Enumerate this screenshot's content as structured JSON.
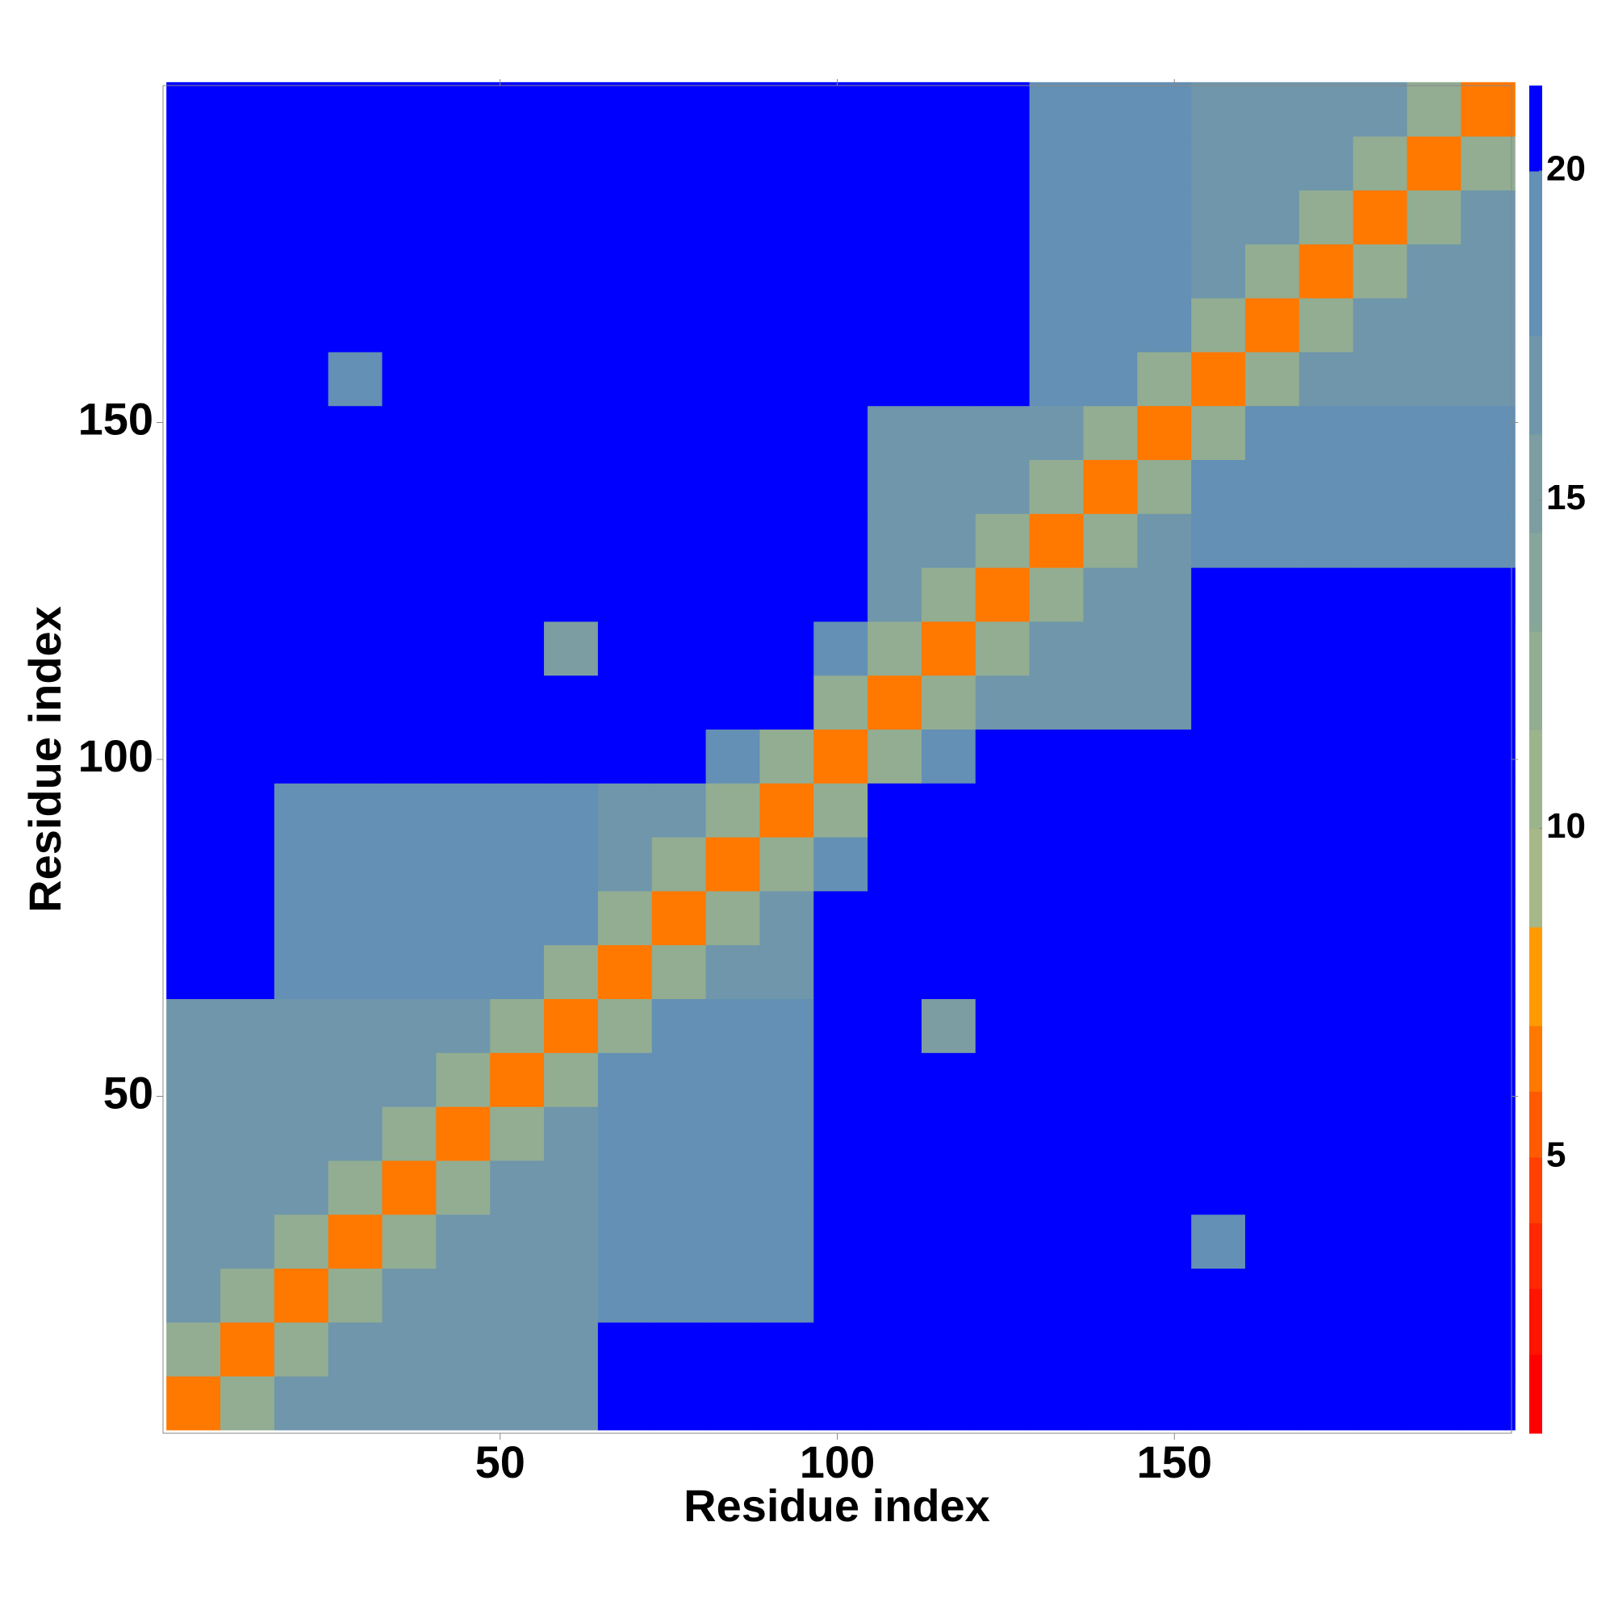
{
  "chart_data": {
    "type": "heatmap",
    "x_label": "Residue index",
    "y_label": "Residue index",
    "x": [
      4.5,
      12.5,
      20.5,
      28.5,
      36.5,
      44.5,
      52.5,
      60.5,
      68.5,
      76.5,
      84.5,
      92.5,
      100.5,
      108.5,
      116.5,
      124.5,
      132.5,
      140.5,
      148.5,
      156.5,
      164.5,
      172.5,
      180.5,
      188.5,
      196.5
    ],
    "y": [
      4.5,
      12.5,
      20.5,
      28.5,
      36.5,
      44.5,
      52.5,
      60.5,
      68.5,
      76.5,
      84.5,
      92.5,
      100.5,
      108.5,
      116.5,
      124.5,
      132.5,
      140.5,
      148.5,
      156.5,
      164.5,
      172.5,
      180.5,
      188.5,
      196.5
    ],
    "z": [
      [
        6,
        12,
        16,
        16,
        16,
        16,
        16,
        16,
        20,
        20,
        20,
        20,
        21,
        21,
        21,
        21,
        21,
        21,
        21,
        21,
        21,
        21,
        21,
        21,
        21
      ],
      [
        12,
        6,
        12,
        16,
        16,
        16,
        16,
        16,
        20,
        20,
        20,
        20,
        21,
        21,
        21,
        21,
        21,
        21,
        21,
        21,
        21,
        21,
        21,
        21,
        21
      ],
      [
        16,
        12,
        6,
        12,
        16,
        16,
        16,
        16,
        18,
        18,
        18,
        18,
        21,
        21,
        21,
        21,
        21,
        21,
        21,
        21,
        21,
        21,
        21,
        21,
        21
      ],
      [
        16,
        16,
        12,
        6,
        12,
        16,
        16,
        16,
        18,
        18,
        18,
        18,
        21,
        21,
        21,
        21,
        21,
        21,
        21,
        18,
        21,
        21,
        21,
        20.5,
        21
      ],
      [
        16,
        16,
        16,
        12,
        6,
        12,
        16,
        16,
        18,
        18,
        18,
        18,
        21,
        21,
        21,
        21,
        21,
        21,
        21,
        21,
        21,
        21,
        21,
        21,
        21
      ],
      [
        16,
        16,
        16,
        16,
        12,
        6,
        12,
        16,
        18,
        18,
        18,
        18,
        21,
        21,
        21,
        21,
        21,
        21,
        21,
        21,
        21,
        21,
        21,
        21,
        21
      ],
      [
        16,
        16,
        16,
        16,
        16,
        12,
        6,
        12,
        18,
        18,
        18,
        18,
        21,
        21,
        21,
        21,
        21,
        21,
        21,
        21,
        21,
        21,
        21,
        21,
        21
      ],
      [
        16,
        16,
        16,
        16,
        16,
        16,
        12,
        6,
        12,
        18,
        18,
        18,
        21,
        21,
        15,
        21,
        21,
        21,
        20.5,
        21,
        21,
        21,
        21,
        21,
        21
      ],
      [
        20,
        20,
        18,
        18,
        18,
        18,
        18,
        12,
        6,
        12,
        16,
        16,
        21,
        21,
        21,
        21,
        21,
        21,
        21,
        21,
        21,
        21,
        21,
        21,
        21
      ],
      [
        20,
        20,
        18,
        18,
        18,
        18,
        18,
        18,
        12,
        6,
        12,
        16,
        21,
        21,
        21,
        21,
        21,
        21,
        21,
        21,
        21,
        21,
        21,
        21,
        21
      ],
      [
        20,
        20,
        18,
        18,
        18,
        18,
        18,
        18,
        16,
        12,
        6,
        12,
        19,
        21,
        21,
        21,
        20.5,
        20,
        21,
        21,
        21,
        21,
        21,
        21,
        21
      ],
      [
        20,
        20,
        18,
        18,
        18,
        18,
        18,
        18,
        16,
        16,
        12,
        6,
        12,
        21,
        21,
        21,
        21,
        21,
        21,
        21,
        21,
        21,
        21,
        21,
        21
      ],
      [
        21,
        21,
        21,
        21,
        21,
        21,
        21,
        21,
        21,
        21,
        19,
        12,
        6,
        12,
        18,
        21,
        21,
        21,
        21,
        21,
        21,
        21,
        21,
        21,
        21
      ],
      [
        21,
        21,
        21,
        21,
        21,
        21,
        21,
        21,
        21,
        21,
        21,
        21,
        12,
        6,
        12,
        17,
        17,
        17,
        17,
        20,
        20,
        20,
        20,
        20,
        20
      ],
      [
        21,
        21,
        21,
        21,
        21,
        21,
        21,
        15,
        21,
        21,
        21,
        21,
        18,
        12,
        6,
        12,
        17,
        17,
        17,
        20,
        20,
        20,
        20,
        20,
        20
      ],
      [
        21,
        21,
        21,
        21,
        21,
        21,
        21,
        21,
        21,
        21,
        21,
        21,
        21,
        17,
        12,
        6,
        12,
        17,
        17,
        20,
        20,
        20,
        20,
        20,
        20
      ],
      [
        21,
        21,
        21,
        21,
        21,
        21,
        21,
        21,
        21,
        21,
        20.5,
        21,
        21,
        17,
        17,
        12,
        6,
        12,
        17,
        18,
        18,
        18,
        18,
        18,
        18
      ],
      [
        21,
        21,
        21,
        21,
        21,
        21,
        21,
        21,
        21,
        21,
        20,
        21,
        21,
        17,
        17,
        17,
        12,
        6,
        12,
        18,
        18,
        18,
        18,
        18,
        18
      ],
      [
        21,
        21,
        21,
        21,
        21,
        21,
        21,
        20.5,
        21,
        21,
        21,
        21,
        21,
        17,
        17,
        17,
        17,
        12,
        6,
        12,
        18,
        18,
        18,
        18,
        18
      ],
      [
        21,
        21,
        21,
        18,
        21,
        21,
        21,
        21,
        21,
        21,
        21,
        21,
        21,
        20,
        20,
        20,
        18,
        18,
        12,
        6,
        12,
        17,
        17,
        17,
        17
      ],
      [
        21,
        21,
        21,
        21,
        21,
        21,
        21,
        21,
        21,
        21,
        21,
        21,
        21,
        20,
        20,
        20,
        18,
        18,
        18,
        12,
        6,
        12,
        17,
        17,
        17
      ],
      [
        21,
        21,
        21,
        21,
        21,
        21,
        21,
        21,
        21,
        21,
        21,
        21,
        21,
        20,
        20,
        20,
        18,
        18,
        18,
        17,
        12,
        6,
        12,
        17,
        17
      ],
      [
        21,
        21,
        21,
        21,
        21,
        21,
        21,
        21,
        21,
        21,
        21,
        21,
        21,
        20,
        20,
        20,
        18,
        18,
        18,
        17,
        17,
        12,
        6,
        12,
        17
      ],
      [
        21,
        21,
        21,
        20.5,
        21,
        21,
        21,
        21,
        21,
        21,
        21,
        21,
        21,
        20,
        20,
        20,
        18,
        18,
        18,
        17,
        17,
        17,
        12,
        6,
        12
      ],
      [
        21,
        21,
        21,
        21,
        21,
        21,
        21,
        21,
        21,
        21,
        21,
        21,
        21,
        20,
        20,
        20,
        18,
        18,
        18,
        17,
        17,
        17,
        17,
        12,
        6
      ]
    ],
    "xlim": [
      0,
      200
    ],
    "ylim": [
      0,
      200
    ],
    "xticks": [
      50,
      100,
      150
    ],
    "yticks": [
      50,
      100,
      150
    ],
    "colorbar": {
      "clim": [
        0.8,
        21.3
      ],
      "ticks": [
        5,
        10,
        15,
        20
      ],
      "levels": [
        0.8,
        2,
        3,
        4,
        5,
        6,
        7,
        8.5,
        10,
        11.5,
        13,
        14.5,
        16,
        17.5,
        20,
        21.3
      ],
      "colors": [
        "#ff0000",
        "#ff1400",
        "#ff2800",
        "#ff4000",
        "#ff5a00",
        "#ff7800",
        "#ff9a00",
        "#a6b888",
        "#9cb48c",
        "#92ad92",
        "#87a69a",
        "#7c9ea2",
        "#6f96ab",
        "#6390b4",
        "#0000ff"
      ]
    }
  }
}
